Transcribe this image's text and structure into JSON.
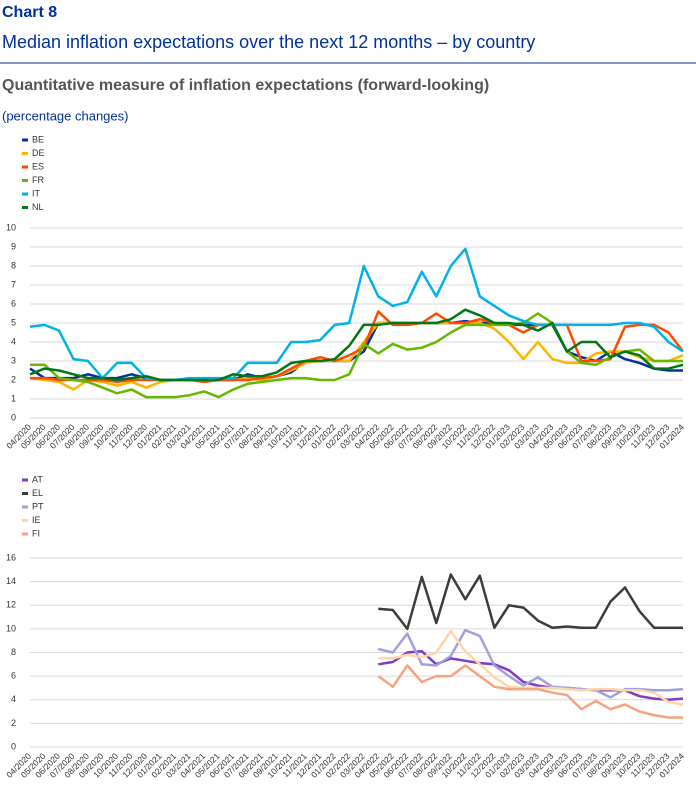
{
  "header": {
    "chart_label": "Chart 8",
    "title": "Median inflation expectations over the next 12 months – by country",
    "subtitle": "Quantitative measure of inflation expectations (forward-looking)",
    "unit": "(percentage changes)"
  },
  "chart_data": [
    {
      "type": "line",
      "legend": "top-left",
      "grid": true,
      "categories": [
        "04/2020",
        "05/2020",
        "06/2020",
        "07/2020",
        "08/2020",
        "09/2020",
        "10/2020",
        "11/2020",
        "12/2020",
        "01/2021",
        "02/2021",
        "03/2021",
        "04/2021",
        "05/2021",
        "06/2021",
        "07/2021",
        "08/2021",
        "09/2021",
        "10/2021",
        "11/2021",
        "12/2021",
        "01/2022",
        "02/2022",
        "03/2022",
        "04/2022",
        "05/2022",
        "06/2022",
        "07/2022",
        "08/2022",
        "09/2022",
        "10/2022",
        "11/2022",
        "12/2022",
        "01/2023",
        "02/2023",
        "03/2023",
        "04/2023",
        "05/2023",
        "06/2023",
        "07/2023",
        "08/2023",
        "09/2023",
        "10/2023",
        "11/2023",
        "12/2023",
        "01/2024"
      ],
      "ylim": [
        0,
        10
      ],
      "yticks": [
        0,
        1,
        2,
        3,
        4,
        5,
        6,
        7,
        8,
        9,
        10
      ],
      "series": [
        {
          "name": "BE",
          "color": "#003299",
          "values": [
            2.6,
            2.1,
            2.1,
            2.1,
            2.3,
            2.1,
            2.1,
            2.3,
            2.1,
            2.0,
            2.0,
            2.0,
            2.0,
            2.0,
            2.0,
            2.3,
            2.1,
            2.2,
            2.4,
            3.0,
            3.0,
            3.0,
            3.0,
            3.5,
            5.0,
            5.0,
            5.0,
            5.0,
            5.0,
            5.0,
            5.1,
            5.0,
            5.0,
            4.9,
            4.9,
            4.9,
            4.9,
            3.5,
            3.2,
            3.0,
            3.5,
            3.1,
            2.9,
            2.6,
            2.5,
            2.5
          ]
        },
        {
          "name": "DE",
          "color": "#ffb400",
          "values": [
            2.1,
            2.0,
            1.9,
            1.5,
            2.0,
            1.9,
            1.7,
            1.9,
            1.6,
            1.9,
            2.0,
            2.0,
            2.0,
            2.0,
            2.0,
            2.1,
            2.0,
            2.2,
            2.5,
            2.9,
            3.0,
            3.0,
            3.0,
            4.0,
            5.0,
            5.0,
            5.0,
            5.0,
            5.0,
            5.0,
            5.0,
            5.0,
            4.7,
            4.0,
            3.1,
            4.0,
            3.1,
            2.9,
            2.9,
            3.4,
            3.5,
            3.5,
            3.2,
            3.0,
            3.0,
            3.3
          ]
        },
        {
          "name": "ES",
          "color": "#ff4b00",
          "values": [
            2.1,
            2.1,
            2.0,
            2.0,
            2.0,
            2.0,
            1.9,
            2.0,
            2.0,
            2.0,
            2.0,
            2.0,
            1.9,
            2.0,
            2.0,
            2.0,
            2.1,
            2.2,
            2.6,
            3.0,
            3.2,
            3.0,
            3.3,
            3.7,
            5.6,
            4.9,
            4.9,
            5.0,
            5.5,
            5.0,
            5.0,
            5.2,
            5.0,
            4.9,
            4.5,
            4.9,
            4.9,
            4.9,
            3.0,
            3.0,
            3.1,
            4.8,
            4.9,
            4.9,
            4.5,
            3.5
          ]
        },
        {
          "name": "FR",
          "color": "#65b800",
          "values": [
            2.8,
            2.8,
            2.1,
            2.0,
            1.9,
            1.6,
            1.3,
            1.5,
            1.1,
            1.1,
            1.1,
            1.2,
            1.4,
            1.1,
            1.5,
            1.8,
            1.9,
            2.0,
            2.1,
            2.1,
            2.0,
            2.0,
            2.3,
            3.9,
            3.4,
            3.9,
            3.6,
            3.7,
            4.0,
            4.5,
            4.9,
            4.9,
            4.9,
            4.9,
            5.0,
            5.5,
            5.0,
            3.5,
            2.9,
            2.8,
            3.2,
            3.5,
            3.6,
            3.0,
            3.0,
            3.0
          ]
        },
        {
          "name": "IT",
          "color": "#00b1ea",
          "values": [
            4.8,
            4.9,
            4.6,
            3.1,
            3.0,
            2.1,
            2.9,
            2.9,
            2.1,
            2.0,
            2.0,
            2.1,
            2.1,
            2.1,
            2.1,
            2.9,
            2.9,
            2.9,
            4.0,
            4.0,
            4.1,
            4.9,
            5.0,
            8.0,
            6.4,
            5.9,
            6.1,
            7.7,
            6.4,
            8.0,
            8.9,
            6.4,
            5.9,
            5.4,
            5.1,
            4.9,
            4.9,
            4.9,
            4.9,
            4.9,
            4.9,
            5.0,
            5.0,
            4.8,
            4.0,
            3.5
          ]
        },
        {
          "name": "NL",
          "color": "#007816",
          "values": [
            2.3,
            2.6,
            2.5,
            2.3,
            2.1,
            2.1,
            2.0,
            2.1,
            2.2,
            2.0,
            2.0,
            2.0,
            2.0,
            2.0,
            2.3,
            2.2,
            2.2,
            2.4,
            2.9,
            3.0,
            3.0,
            3.1,
            3.8,
            4.9,
            4.9,
            5.0,
            5.0,
            5.0,
            5.0,
            5.2,
            5.7,
            5.4,
            5.0,
            5.0,
            4.9,
            4.6,
            5.0,
            3.5,
            4.0,
            4.0,
            3.2,
            3.5,
            3.3,
            2.6,
            2.6,
            2.8
          ]
        }
      ]
    },
    {
      "type": "line",
      "legend": "top-left",
      "grid": true,
      "categories": [
        "04/2020",
        "05/2020",
        "06/2020",
        "07/2020",
        "08/2020",
        "09/2020",
        "10/2020",
        "11/2020",
        "12/2020",
        "01/2021",
        "02/2021",
        "03/2021",
        "04/2021",
        "05/2021",
        "06/2021",
        "07/2021",
        "08/2021",
        "09/2021",
        "10/2021",
        "11/2021",
        "12/2021",
        "01/2022",
        "02/2022",
        "03/2022",
        "04/2022",
        "05/2022",
        "06/2022",
        "07/2022",
        "08/2022",
        "09/2022",
        "10/2022",
        "11/2022",
        "12/2022",
        "01/2023",
        "02/2023",
        "03/2023",
        "04/2023",
        "05/2023",
        "06/2023",
        "07/2023",
        "08/2023",
        "09/2023",
        "10/2023",
        "11/2023",
        "12/2023",
        "01/2024"
      ],
      "ylim": [
        0,
        16
      ],
      "yticks": [
        0,
        2,
        4,
        6,
        8,
        10,
        12,
        14,
        16
      ],
      "series": [
        {
          "name": "AT",
          "color": "#8139c6",
          "values": [
            null,
            null,
            null,
            null,
            null,
            null,
            null,
            null,
            null,
            null,
            null,
            null,
            null,
            null,
            null,
            null,
            null,
            null,
            null,
            null,
            null,
            null,
            null,
            null,
            7.0,
            7.2,
            8.0,
            8.1,
            7.0,
            7.5,
            7.3,
            7.1,
            7.0,
            6.5,
            5.5,
            5.2,
            5.0,
            5.0,
            4.9,
            4.8,
            4.8,
            4.8,
            4.3,
            4.1,
            4.0,
            4.1
          ]
        },
        {
          "name": "EL",
          "color": "#3c3c3c",
          "values": [
            null,
            null,
            null,
            null,
            null,
            null,
            null,
            null,
            null,
            null,
            null,
            null,
            null,
            null,
            null,
            null,
            null,
            null,
            null,
            null,
            null,
            null,
            null,
            null,
            11.7,
            11.6,
            10.0,
            14.4,
            10.5,
            14.6,
            12.5,
            14.5,
            10.1,
            12.0,
            11.8,
            10.7,
            10.1,
            10.2,
            10.1,
            10.1,
            12.3,
            13.5,
            11.5,
            10.1,
            10.1,
            10.1
          ]
        },
        {
          "name": "PT",
          "color": "#a0a0e0",
          "values": [
            null,
            null,
            null,
            null,
            null,
            null,
            null,
            null,
            null,
            null,
            null,
            null,
            null,
            null,
            null,
            null,
            null,
            null,
            null,
            null,
            null,
            null,
            null,
            null,
            8.3,
            8.0,
            9.6,
            7.0,
            6.9,
            7.7,
            9.9,
            9.4,
            6.9,
            6.0,
            5.2,
            5.9,
            5.1,
            5.0,
            4.9,
            4.8,
            4.2,
            4.9,
            4.9,
            4.8,
            4.8,
            4.9
          ]
        },
        {
          "name": "IE",
          "color": "#ffd6a5",
          "values": [
            null,
            null,
            null,
            null,
            null,
            null,
            null,
            null,
            null,
            null,
            null,
            null,
            null,
            null,
            null,
            null,
            null,
            null,
            null,
            null,
            null,
            null,
            null,
            null,
            7.5,
            7.5,
            7.8,
            7.6,
            8.0,
            9.8,
            8.1,
            7.0,
            5.9,
            5.1,
            5.0,
            5.0,
            5.0,
            4.9,
            4.8,
            4.9,
            4.9,
            4.8,
            4.8,
            4.6,
            3.8,
            3.6
          ]
        },
        {
          "name": "FI",
          "color": "#f7a47e",
          "values": [
            null,
            null,
            null,
            null,
            null,
            null,
            null,
            null,
            null,
            null,
            null,
            null,
            null,
            null,
            null,
            null,
            null,
            null,
            null,
            null,
            null,
            null,
            null,
            null,
            6.0,
            5.1,
            6.9,
            5.5,
            6.0,
            6.0,
            6.9,
            6.0,
            5.1,
            4.9,
            4.9,
            4.9,
            4.6,
            4.4,
            3.2,
            3.9,
            3.2,
            3.6,
            3.0,
            2.7,
            2.5,
            2.5
          ]
        }
      ]
    }
  ]
}
